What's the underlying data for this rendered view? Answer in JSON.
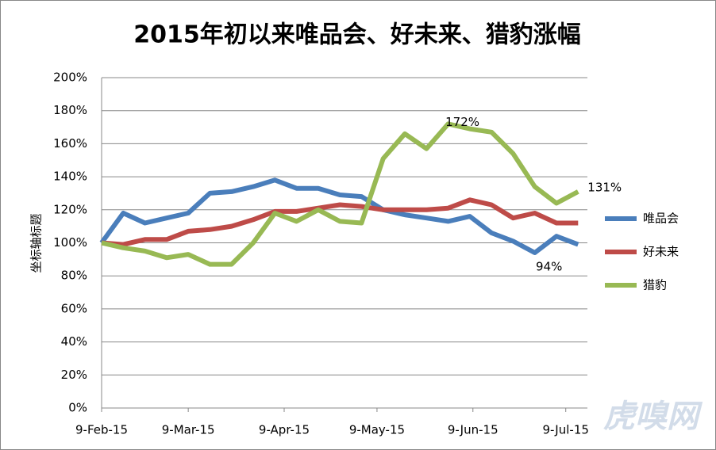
{
  "chart_data": {
    "type": "line",
    "title": "2015年初以来唯品会、好未来、猎豹涨幅",
    "y_label": "坐标轴标题",
    "watermark": "虎嗅网",
    "x": [
      "2015-02-09",
      "2015-02-16",
      "2015-02-23",
      "2015-03-02",
      "2015-03-09",
      "2015-03-16",
      "2015-03-23",
      "2015-03-30",
      "2015-04-06",
      "2015-04-13",
      "2015-04-20",
      "2015-04-27",
      "2015-05-04",
      "2015-05-11",
      "2015-05-18",
      "2015-05-25",
      "2015-06-01",
      "2015-06-08",
      "2015-06-15",
      "2015-06-22",
      "2015-06-29",
      "2015-07-06",
      "2015-07-13"
    ],
    "xlim": [
      "2015-02-09",
      "2015-07-16"
    ],
    "xticks": [
      {
        "value": "2015-02-09",
        "label": "9-Feb-15"
      },
      {
        "value": "2015-03-09",
        "label": "9-Mar-15"
      },
      {
        "value": "2015-04-09",
        "label": "9-Apr-15"
      },
      {
        "value": "2015-05-09",
        "label": "9-May-15"
      },
      {
        "value": "2015-06-09",
        "label": "9-Jun-15"
      },
      {
        "value": "2015-07-09",
        "label": "9-Jul-15"
      }
    ],
    "ylim": [
      0,
      200
    ],
    "yticks": [
      {
        "value": 0,
        "label": "0%"
      },
      {
        "value": 20,
        "label": "20%"
      },
      {
        "value": 40,
        "label": "40%"
      },
      {
        "value": 60,
        "label": "60%"
      },
      {
        "value": 80,
        "label": "80%"
      },
      {
        "value": 100,
        "label": "100%"
      },
      {
        "value": 120,
        "label": "120%"
      },
      {
        "value": 140,
        "label": "140%"
      },
      {
        "value": 160,
        "label": "160%"
      },
      {
        "value": 180,
        "label": "180%"
      },
      {
        "value": 200,
        "label": "200%"
      }
    ],
    "grid": true,
    "legend": "right",
    "series": [
      {
        "name": "唯品会",
        "color": "#4a7ebb",
        "values": [
          100,
          118,
          112,
          115,
          118,
          130,
          131,
          134,
          138,
          133,
          133,
          129,
          128,
          120,
          117,
          115,
          113,
          116,
          106,
          101,
          94,
          104,
          99
        ],
        "value_labels": [
          null,
          null,
          null,
          null,
          null,
          null,
          null,
          null,
          null,
          null,
          null,
          null,
          null,
          null,
          null,
          null,
          null,
          null,
          null,
          null,
          "94%",
          null,
          null
        ]
      },
      {
        "name": "好未来",
        "color": "#be4b48",
        "values": [
          100,
          99,
          102,
          102,
          107,
          108,
          110,
          114,
          119,
          119,
          121,
          123,
          122,
          120,
          120,
          120,
          121,
          126,
          123,
          115,
          118,
          112,
          112
        ]
      },
      {
        "name": "猎豹",
        "color": "#98b954",
        "values": [
          100,
          97,
          95,
          91,
          93,
          87,
          87,
          100,
          118,
          113,
          120,
          113,
          112,
          151,
          166,
          157,
          172,
          169,
          167,
          154,
          134,
          124,
          131
        ],
        "value_labels": [
          null,
          null,
          null,
          null,
          null,
          null,
          null,
          null,
          null,
          null,
          null,
          null,
          null,
          null,
          null,
          null,
          "172%",
          null,
          null,
          null,
          null,
          null,
          "131%"
        ]
      }
    ]
  }
}
